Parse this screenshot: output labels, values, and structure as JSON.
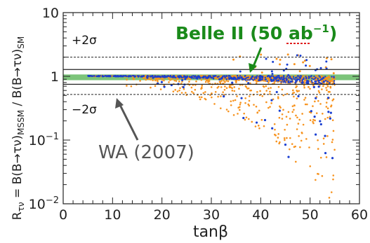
{
  "chart_data": {
    "type": "scatter",
    "title": "",
    "xlabel": "tanβ",
    "ylabel": "R_τν = B(B→τν)_MSSM / B(B→τν)_SM",
    "ylabel_parts": {
      "main": "R",
      "sub1": "τν",
      "mid": " = B(B→τν)",
      "sub2": "MSSM",
      "mid2": " / B(B→τν)",
      "sub3": "SM"
    },
    "xlim": [
      0,
      60
    ],
    "ylim": [
      0.01,
      10
    ],
    "yscale": "log",
    "x_ticks": [
      0,
      10,
      20,
      30,
      40,
      50,
      60
    ],
    "x_tick_labels": [
      "0",
      "10",
      "20",
      "30",
      "40",
      "50",
      "60"
    ],
    "y_ticks": [
      0.01,
      0.1,
      1,
      10
    ],
    "y_tick_labels": {
      "t1": {
        "base": "10",
        "exp": "−2"
      },
      "t2": {
        "base": "10",
        "exp": "−1"
      },
      "t3": {
        "base": "1",
        "exp": ""
      },
      "t4": {
        "base": "10",
        "exp": ""
      }
    },
    "grid": false,
    "reference_lines": [
      {
        "label": "+2σ",
        "y": 2.0,
        "style": "dashed"
      },
      {
        "label": "",
        "y": 1.28,
        "style": "solid"
      },
      {
        "label": "",
        "y": 0.75,
        "style": "solid"
      },
      {
        "label": "−2σ",
        "y": 0.52,
        "style": "dashed"
      }
    ],
    "band": {
      "y_low": 0.87,
      "y_high": 1.07,
      "color": "#7cc47a"
    },
    "annotations": [
      {
        "text": "Belle II (50 ab⁻¹)",
        "text_main": "Belle II (50 ",
        "text_unit": "ab",
        "text_exp": "−1",
        "text_end": ")",
        "color": "#1a8a1a",
        "points_to": [
          39,
          1.15
        ]
      },
      {
        "text": "WA (2007)",
        "color": "#555555",
        "points_to": [
          12,
          0.62
        ]
      }
    ],
    "series": [
      {
        "color": "#f7931e",
        "style": "orange"
      },
      {
        "color": "#1a3fd1",
        "style": "blue"
      }
    ]
  }
}
